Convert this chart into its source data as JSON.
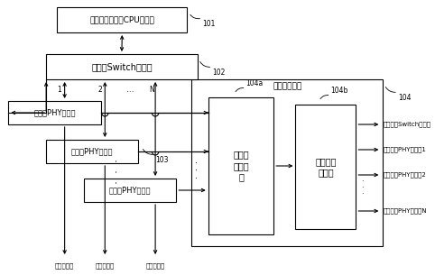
{
  "bg_color": "#ffffff",
  "box_color": "#ffffff",
  "box_edge": "#000000",
  "line_color": "#000000",
  "font_size": 7.0,
  "cpu_label": "中央处理单元（CPU）模块",
  "switch_label": "交接（Switch）模块",
  "phy1_label": "物理（PHY）模块",
  "phy2_label": "物理（PHY）模块",
  "phy3_label": "物理（PHY）模块",
  "clk_proc_label": "时钟处理模块",
  "clk_sync_label": "时钟同\n步子模\n块",
  "clk_gen_label": "时钟产生\n子模块",
  "label_101": "101",
  "label_102": "102",
  "label_103": "103",
  "label_104": "104",
  "label_104a": "104a",
  "label_104b": "104b",
  "label_1": "1",
  "label_2": "2",
  "label_N": "N",
  "dots_h": "……",
  "dots_v": "·\n·\n·",
  "output_labels": [
    "到交接（Switch）模块",
    "到物理（PHY）模块1",
    "到物理（PHY）模块2",
    "到物理（PHY）模块N"
  ],
  "bottom_label": "以太网链路"
}
